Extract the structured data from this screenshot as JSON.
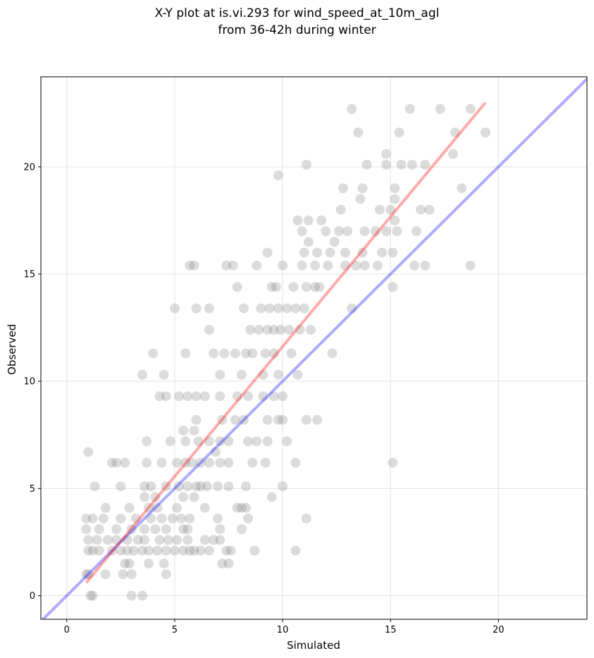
{
  "chart_data": {
    "type": "scatter",
    "title_lines": [
      "X-Y plot at is.vi.293 for wind_speed_at_10m_agl",
      "from 36-42h during winter"
    ],
    "xlabel": "Simulated",
    "ylabel": "Observed",
    "xlim": [
      -1.2,
      24.1
    ],
    "ylim": [
      -1.1,
      24.2
    ],
    "xticks": [
      0,
      5,
      10,
      15,
      20
    ],
    "yticks": [
      0,
      5,
      10,
      15,
      20
    ],
    "grid": true,
    "colors": {
      "points": "#808080",
      "regression": "#ff0000",
      "identity": "#0000ff",
      "grid": "#b0b0b0"
    },
    "identity_line": {
      "x": [
        -1.2,
        24.1
      ],
      "y": [
        -1.2,
        24.1
      ]
    },
    "regression_line": {
      "x": [
        0.9,
        19.4
      ],
      "y": [
        0.6,
        23.0
      ]
    },
    "points": [
      [
        1.1,
        0.0
      ],
      [
        1.2,
        0.0
      ],
      [
        3.0,
        0.0
      ],
      [
        3.5,
        0.0
      ],
      [
        0.9,
        1.0
      ],
      [
        1.0,
        1.0
      ],
      [
        1.8,
        1.0
      ],
      [
        2.6,
        1.0
      ],
      [
        3.0,
        1.0
      ],
      [
        4.6,
        1.0
      ],
      [
        2.7,
        1.5
      ],
      [
        2.9,
        1.5
      ],
      [
        3.8,
        1.5
      ],
      [
        4.5,
        1.5
      ],
      [
        7.2,
        1.5
      ],
      [
        7.5,
        1.5
      ],
      [
        1.0,
        2.1
      ],
      [
        1.2,
        2.1
      ],
      [
        1.5,
        2.1
      ],
      [
        2.1,
        2.1
      ],
      [
        2.5,
        2.1
      ],
      [
        2.8,
        2.1
      ],
      [
        3.1,
        2.1
      ],
      [
        3.5,
        2.1
      ],
      [
        3.8,
        2.1
      ],
      [
        4.2,
        2.1
      ],
      [
        4.6,
        2.1
      ],
      [
        5.0,
        2.1
      ],
      [
        5.4,
        2.1
      ],
      [
        5.7,
        2.1
      ],
      [
        5.9,
        2.1
      ],
      [
        6.2,
        2.1
      ],
      [
        6.6,
        2.1
      ],
      [
        7.4,
        2.1
      ],
      [
        7.6,
        2.1
      ],
      [
        8.7,
        2.1
      ],
      [
        10.6,
        2.1
      ],
      [
        1.0,
        2.6
      ],
      [
        1.4,
        2.6
      ],
      [
        1.9,
        2.6
      ],
      [
        2.3,
        2.6
      ],
      [
        2.8,
        2.6
      ],
      [
        3.3,
        2.6
      ],
      [
        3.6,
        2.6
      ],
      [
        4.3,
        2.6
      ],
      [
        4.7,
        2.6
      ],
      [
        5.1,
        2.6
      ],
      [
        5.6,
        2.6
      ],
      [
        6.4,
        2.6
      ],
      [
        6.8,
        2.6
      ],
      [
        7.1,
        2.6
      ],
      [
        0.9,
        3.1
      ],
      [
        1.5,
        3.1
      ],
      [
        2.3,
        3.1
      ],
      [
        3.0,
        3.1
      ],
      [
        3.6,
        3.1
      ],
      [
        4.1,
        3.1
      ],
      [
        4.6,
        3.1
      ],
      [
        5.4,
        3.1
      ],
      [
        5.6,
        3.1
      ],
      [
        7.1,
        3.1
      ],
      [
        8.1,
        3.1
      ],
      [
        0.9,
        3.6
      ],
      [
        1.2,
        3.6
      ],
      [
        1.7,
        3.6
      ],
      [
        2.5,
        3.6
      ],
      [
        3.2,
        3.6
      ],
      [
        3.9,
        3.6
      ],
      [
        4.4,
        3.6
      ],
      [
        4.9,
        3.6
      ],
      [
        5.3,
        3.6
      ],
      [
        5.7,
        3.6
      ],
      [
        7.0,
        3.6
      ],
      [
        8.4,
        3.6
      ],
      [
        11.1,
        3.6
      ],
      [
        1.8,
        4.1
      ],
      [
        2.9,
        4.1
      ],
      [
        3.8,
        4.1
      ],
      [
        4.2,
        4.1
      ],
      [
        5.1,
        4.1
      ],
      [
        6.4,
        4.1
      ],
      [
        7.9,
        4.1
      ],
      [
        8.1,
        4.1
      ],
      [
        8.3,
        4.1
      ],
      [
        3.6,
        4.6
      ],
      [
        4.1,
        4.6
      ],
      [
        5.4,
        4.6
      ],
      [
        5.9,
        4.6
      ],
      [
        9.5,
        4.6
      ],
      [
        1.3,
        5.1
      ],
      [
        2.5,
        5.1
      ],
      [
        3.6,
        5.1
      ],
      [
        3.9,
        5.1
      ],
      [
        4.6,
        5.1
      ],
      [
        5.2,
        5.1
      ],
      [
        5.6,
        5.1
      ],
      [
        6.0,
        5.1
      ],
      [
        6.2,
        5.1
      ],
      [
        6.5,
        5.1
      ],
      [
        7.0,
        5.1
      ],
      [
        7.5,
        5.1
      ],
      [
        8.3,
        5.1
      ],
      [
        10.0,
        5.1
      ],
      [
        2.1,
        6.2
      ],
      [
        2.3,
        6.2
      ],
      [
        2.7,
        6.2
      ],
      [
        3.7,
        6.2
      ],
      [
        4.4,
        6.2
      ],
      [
        5.1,
        6.2
      ],
      [
        5.5,
        6.2
      ],
      [
        5.8,
        6.2
      ],
      [
        6.2,
        6.2
      ],
      [
        6.6,
        6.2
      ],
      [
        7.1,
        6.2
      ],
      [
        7.5,
        6.2
      ],
      [
        8.6,
        6.2
      ],
      [
        9.2,
        6.2
      ],
      [
        10.6,
        6.2
      ],
      [
        15.1,
        6.2
      ],
      [
        1.0,
        6.7
      ],
      [
        6.9,
        6.7
      ],
      [
        3.7,
        7.2
      ],
      [
        4.8,
        7.2
      ],
      [
        5.5,
        7.2
      ],
      [
        6.1,
        7.2
      ],
      [
        6.6,
        7.2
      ],
      [
        7.1,
        7.2
      ],
      [
        7.5,
        7.2
      ],
      [
        8.4,
        7.2
      ],
      [
        8.8,
        7.2
      ],
      [
        9.3,
        7.2
      ],
      [
        10.2,
        7.2
      ],
      [
        5.4,
        7.7
      ],
      [
        5.9,
        7.7
      ],
      [
        6.0,
        8.2
      ],
      [
        7.2,
        8.2
      ],
      [
        7.8,
        8.2
      ],
      [
        8.2,
        8.2
      ],
      [
        9.3,
        8.2
      ],
      [
        9.8,
        8.2
      ],
      [
        10.0,
        8.2
      ],
      [
        11.1,
        8.2
      ],
      [
        11.6,
        8.2
      ],
      [
        4.3,
        9.3
      ],
      [
        4.6,
        9.3
      ],
      [
        5.2,
        9.3
      ],
      [
        5.6,
        9.3
      ],
      [
        6.0,
        9.3
      ],
      [
        6.4,
        9.3
      ],
      [
        7.1,
        9.3
      ],
      [
        7.9,
        9.3
      ],
      [
        8.4,
        9.3
      ],
      [
        9.1,
        9.3
      ],
      [
        9.6,
        9.3
      ],
      [
        10.0,
        9.3
      ],
      [
        3.5,
        10.3
      ],
      [
        4.5,
        10.3
      ],
      [
        7.1,
        10.3
      ],
      [
        8.1,
        10.3
      ],
      [
        9.1,
        10.3
      ],
      [
        9.8,
        10.3
      ],
      [
        10.7,
        10.3
      ],
      [
        4.0,
        11.3
      ],
      [
        5.5,
        11.3
      ],
      [
        6.8,
        11.3
      ],
      [
        7.3,
        11.3
      ],
      [
        7.8,
        11.3
      ],
      [
        8.3,
        11.3
      ],
      [
        8.6,
        11.3
      ],
      [
        9.2,
        11.3
      ],
      [
        9.6,
        11.3
      ],
      [
        10.4,
        11.3
      ],
      [
        12.3,
        11.3
      ],
      [
        6.6,
        12.4
      ],
      [
        8.5,
        12.4
      ],
      [
        8.9,
        12.4
      ],
      [
        9.3,
        12.4
      ],
      [
        9.6,
        12.4
      ],
      [
        9.9,
        12.4
      ],
      [
        10.3,
        12.4
      ],
      [
        10.8,
        12.4
      ],
      [
        11.3,
        12.4
      ],
      [
        5.0,
        13.4
      ],
      [
        6.0,
        13.4
      ],
      [
        6.6,
        13.4
      ],
      [
        8.2,
        13.4
      ],
      [
        9.0,
        13.4
      ],
      [
        9.4,
        13.4
      ],
      [
        9.8,
        13.4
      ],
      [
        10.2,
        13.4
      ],
      [
        10.6,
        13.4
      ],
      [
        11.0,
        13.4
      ],
      [
        13.2,
        13.4
      ],
      [
        7.9,
        14.4
      ],
      [
        9.5,
        14.4
      ],
      [
        9.7,
        14.4
      ],
      [
        10.5,
        14.4
      ],
      [
        11.1,
        14.4
      ],
      [
        11.5,
        14.4
      ],
      [
        11.7,
        14.4
      ],
      [
        15.1,
        14.4
      ],
      [
        5.7,
        15.4
      ],
      [
        5.9,
        15.4
      ],
      [
        7.4,
        15.4
      ],
      [
        7.7,
        15.4
      ],
      [
        8.8,
        15.4
      ],
      [
        10.0,
        15.4
      ],
      [
        10.9,
        15.4
      ],
      [
        11.5,
        15.4
      ],
      [
        12.1,
        15.4
      ],
      [
        12.9,
        15.4
      ],
      [
        13.4,
        15.4
      ],
      [
        13.8,
        15.4
      ],
      [
        14.4,
        15.4
      ],
      [
        16.1,
        15.4
      ],
      [
        16.6,
        15.4
      ],
      [
        18.7,
        15.4
      ],
      [
        9.3,
        16.0
      ],
      [
        11.0,
        16.0
      ],
      [
        11.6,
        16.0
      ],
      [
        12.2,
        16.0
      ],
      [
        12.9,
        16.0
      ],
      [
        13.7,
        16.0
      ],
      [
        14.6,
        16.0
      ],
      [
        15.1,
        16.0
      ],
      [
        11.2,
        16.5
      ],
      [
        12.4,
        16.5
      ],
      [
        10.9,
        17.0
      ],
      [
        12.0,
        17.0
      ],
      [
        12.6,
        17.0
      ],
      [
        13.0,
        17.0
      ],
      [
        13.8,
        17.0
      ],
      [
        14.3,
        17.0
      ],
      [
        14.8,
        17.0
      ],
      [
        15.3,
        17.0
      ],
      [
        16.2,
        17.0
      ],
      [
        10.7,
        17.5
      ],
      [
        11.2,
        17.5
      ],
      [
        11.8,
        17.5
      ],
      [
        15.2,
        17.5
      ],
      [
        12.7,
        18.0
      ],
      [
        14.5,
        18.0
      ],
      [
        15.0,
        18.0
      ],
      [
        16.4,
        18.0
      ],
      [
        16.8,
        18.0
      ],
      [
        15.2,
        18.5
      ],
      [
        13.6,
        18.5
      ],
      [
        12.8,
        19.0
      ],
      [
        13.7,
        19.0
      ],
      [
        15.2,
        19.0
      ],
      [
        18.3,
        19.0
      ],
      [
        9.8,
        19.6
      ],
      [
        11.1,
        20.1
      ],
      [
        13.9,
        20.1
      ],
      [
        14.8,
        20.1
      ],
      [
        15.5,
        20.1
      ],
      [
        16.0,
        20.1
      ],
      [
        16.6,
        20.1
      ],
      [
        14.8,
        20.6
      ],
      [
        17.9,
        20.6
      ],
      [
        13.5,
        21.6
      ],
      [
        15.4,
        21.6
      ],
      [
        18.0,
        21.6
      ],
      [
        19.4,
        21.6
      ],
      [
        13.2,
        22.7
      ],
      [
        15.9,
        22.7
      ],
      [
        17.3,
        22.7
      ],
      [
        18.7,
        22.7
      ]
    ]
  }
}
